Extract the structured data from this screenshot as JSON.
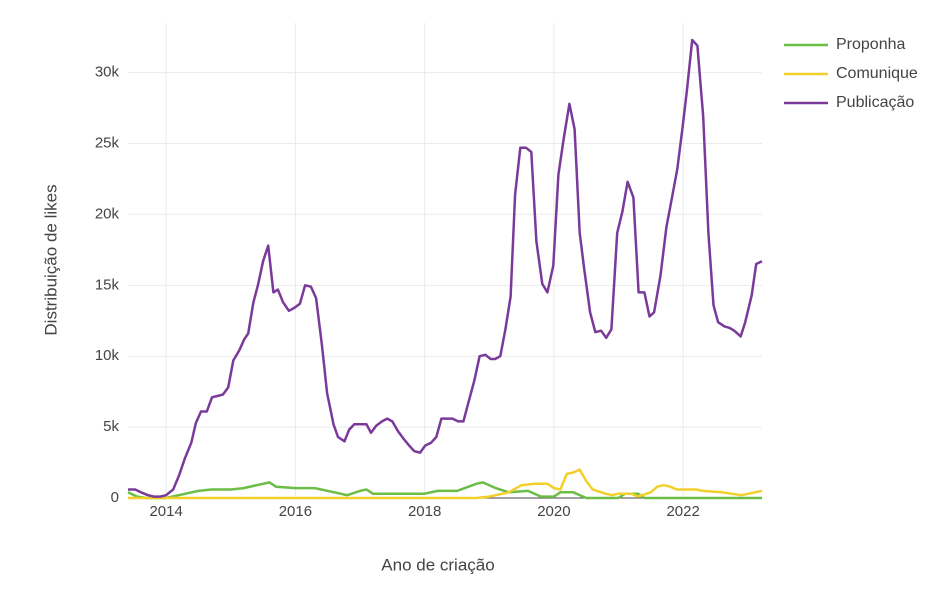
{
  "chart_data": {
    "type": "line",
    "x_label": "Ano de criação",
    "y_label": "Distribuição de likes",
    "xlim": [
      2013.41,
      2023.22
    ],
    "xticks": [
      2014,
      2016,
      2018,
      2020,
      2022
    ],
    "ylim": [
      0,
      33500
    ],
    "yticks": [
      0,
      {
        "value": 5000,
        "label": "5k"
      },
      {
        "value": 10000,
        "label": "10k"
      },
      {
        "value": 15000,
        "label": "15k"
      },
      {
        "value": 20000,
        "label": "20k"
      },
      {
        "value": 25000,
        "label": "25k"
      },
      {
        "value": 30000,
        "label": "30k"
      }
    ],
    "grid": true,
    "legend": "top-right",
    "series": [
      {
        "name": "Proponha",
        "color": "#6cbd45",
        "x": [
          2013.41,
          2013.55,
          2013.7,
          2014.0,
          2014.3,
          2014.5,
          2014.7,
          2015.0,
          2015.2,
          2015.4,
          2015.6,
          2015.7,
          2016.0,
          2016.3,
          2016.6,
          2016.8,
          2017.0,
          2017.1,
          2017.2,
          2017.5,
          2018.0,
          2018.2,
          2018.5,
          2018.8,
          2018.9,
          2019.1,
          2019.3,
          2019.6,
          2019.8,
          2020.0,
          2020.1,
          2020.3,
          2020.5,
          2021.0,
          2021.1,
          2021.3,
          2021.4,
          2023.22
        ],
        "values": [
          400,
          100,
          0,
          0,
          300,
          500,
          600,
          600,
          700,
          900,
          1100,
          800,
          700,
          700,
          400,
          200,
          500,
          600,
          300,
          300,
          300,
          500,
          500,
          1000,
          1100,
          700,
          400,
          500,
          100,
          100,
          400,
          400,
          0,
          0,
          300,
          300,
          0,
          0
        ]
      },
      {
        "name": "Comunique",
        "color": "#f2cf2a",
        "x": [
          2013.41,
          2018.8,
          2019.0,
          2019.3,
          2019.5,
          2019.7,
          2019.9,
          2020.0,
          2020.1,
          2020.2,
          2020.3,
          2020.4,
          2020.5,
          2020.6,
          2020.8,
          2020.9,
          2021.0,
          2021.2,
          2021.3,
          2021.5,
          2021.6,
          2021.7,
          2021.8,
          2021.9,
          2022.2,
          2022.3,
          2022.6,
          2022.9,
          2023.22
        ],
        "values": [
          0,
          0,
          100,
          400,
          900,
          1000,
          1000,
          700,
          600,
          1700,
          1800,
          2000,
          1200,
          600,
          300,
          200,
          300,
          300,
          100,
          400,
          800,
          900,
          800,
          600,
          600,
          500,
          400,
          200,
          500
        ]
      },
      {
        "name": "Publicação",
        "color": "#7a3a9a",
        "x": [
          2013.41,
          2013.52,
          2013.61,
          2013.72,
          2013.81,
          2013.91,
          2014.0,
          2014.11,
          2014.2,
          2014.29,
          2014.39,
          2014.46,
          2014.54,
          2014.63,
          2014.71,
          2014.8,
          2014.88,
          2014.96,
          2015.04,
          2015.13,
          2015.21,
          2015.27,
          2015.35,
          2015.42,
          2015.5,
          2015.58,
          2015.66,
          2015.73,
          2015.81,
          2015.9,
          2015.98,
          2016.07,
          2016.15,
          2016.24,
          2016.32,
          2016.41,
          2016.49,
          2016.59,
          2016.66,
          2016.76,
          2016.83,
          2016.91,
          2017.0,
          2017.1,
          2017.17,
          2017.25,
          2017.34,
          2017.42,
          2017.5,
          2017.59,
          2017.67,
          2017.76,
          2017.84,
          2017.93,
          2018.01,
          2018.1,
          2018.18,
          2018.26,
          2018.35,
          2018.43,
          2018.52,
          2018.6,
          2018.67,
          2018.77,
          2018.85,
          2018.94,
          2019.02,
          2019.09,
          2019.17,
          2019.25,
          2019.33,
          2019.4,
          2019.48,
          2019.57,
          2019.65,
          2019.73,
          2019.82,
          2019.9,
          2019.99,
          2020.07,
          2020.15,
          2020.24,
          2020.32,
          2020.4,
          2020.47,
          2020.56,
          2020.64,
          2020.73,
          2020.81,
          2020.89,
          2020.98,
          2021.06,
          2021.14,
          2021.23,
          2021.31,
          2021.4,
          2021.48,
          2021.55,
          2021.65,
          2021.74,
          2021.82,
          2021.91,
          2021.99,
          2022.06,
          2022.14,
          2022.22,
          2022.31,
          2022.39,
          2022.47,
          2022.54,
          2022.64,
          2022.72,
          2022.79,
          2022.89,
          2022.96,
          2023.06,
          2023.13,
          2023.22
        ],
        "values": [
          600,
          600,
          400,
          200,
          100,
          100,
          200,
          600,
          1600,
          2800,
          3900,
          5300,
          6100,
          6100,
          7100,
          7200,
          7300,
          7800,
          9700,
          10400,
          11200,
          11600,
          13800,
          15000,
          16700,
          17800,
          14500,
          14700,
          13800,
          13200,
          13400,
          13700,
          15000,
          14900,
          14100,
          10800,
          7400,
          5200,
          4300,
          4000,
          4800,
          5200,
          5200,
          5200,
          4600,
          5100,
          5400,
          5600,
          5400,
          4700,
          4200,
          3700,
          3300,
          3200,
          3700,
          3900,
          4300,
          5600,
          5600,
          5600,
          5400,
          5400,
          6600,
          8300,
          10000,
          10100,
          9800,
          9800,
          10000,
          11900,
          14200,
          21400,
          24700,
          24700,
          24400,
          18100,
          15100,
          14500,
          16400,
          22800,
          25300,
          27800,
          26000,
          18700,
          16100,
          13100,
          11700,
          11800,
          11300,
          11900,
          18700,
          20200,
          22300,
          21200,
          14500,
          14500,
          12800,
          13100,
          15700,
          19100,
          21000,
          23200,
          26100,
          28800,
          32300,
          31900,
          26900,
          18700,
          13600,
          12400,
          12100,
          12000,
          11800,
          11400,
          12400,
          14300,
          16500,
          16700
        ]
      }
    ]
  }
}
